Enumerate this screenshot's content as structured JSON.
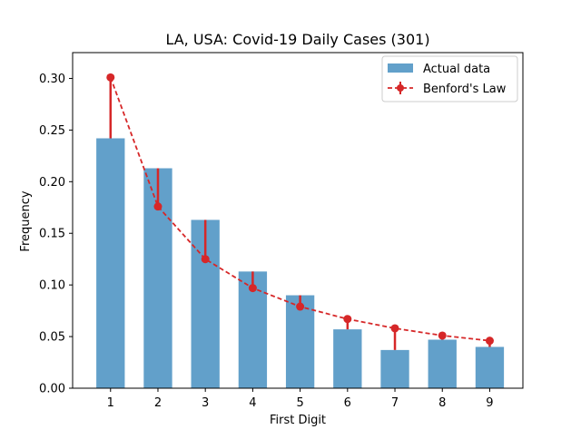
{
  "chart_data": {
    "type": "bar",
    "title": "LA, USA: Covid-19 Daily Cases (301)",
    "xlabel": "First Digit",
    "ylabel": "Frequency",
    "categories": [
      "1",
      "2",
      "3",
      "4",
      "5",
      "6",
      "7",
      "8",
      "9"
    ],
    "x": [
      1,
      2,
      3,
      4,
      5,
      6,
      7,
      8,
      9
    ],
    "xlim": [
      0.2,
      9.7
    ],
    "ylim": [
      0,
      0.325
    ],
    "xticks": [
      "1",
      "2",
      "3",
      "4",
      "5",
      "6",
      "7",
      "8",
      "9"
    ],
    "yticks": [
      {
        "value": 0.0,
        "label": "0.00"
      },
      {
        "value": 0.05,
        "label": "0.05"
      },
      {
        "value": 0.1,
        "label": "0.10"
      },
      {
        "value": 0.15,
        "label": "0.15"
      },
      {
        "value": 0.2,
        "label": "0.20"
      },
      {
        "value": 0.25,
        "label": "0.25"
      },
      {
        "value": 0.3,
        "label": "0.30"
      }
    ],
    "grid": false,
    "legend_position": "top-right",
    "series": [
      {
        "name": "Actual data",
        "type": "bar",
        "color": "#1f77b4",
        "values": [
          0.242,
          0.213,
          0.163,
          0.113,
          0.09,
          0.057,
          0.037,
          0.047,
          0.04
        ]
      },
      {
        "name": "Benford's Law",
        "type": "line",
        "style": "dashed",
        "marker": "circle",
        "color": "#d62728",
        "values": [
          0.301,
          0.176,
          0.125,
          0.097,
          0.079,
          0.067,
          0.058,
          0.051,
          0.046
        ],
        "error_bars": "to actual data"
      }
    ]
  }
}
